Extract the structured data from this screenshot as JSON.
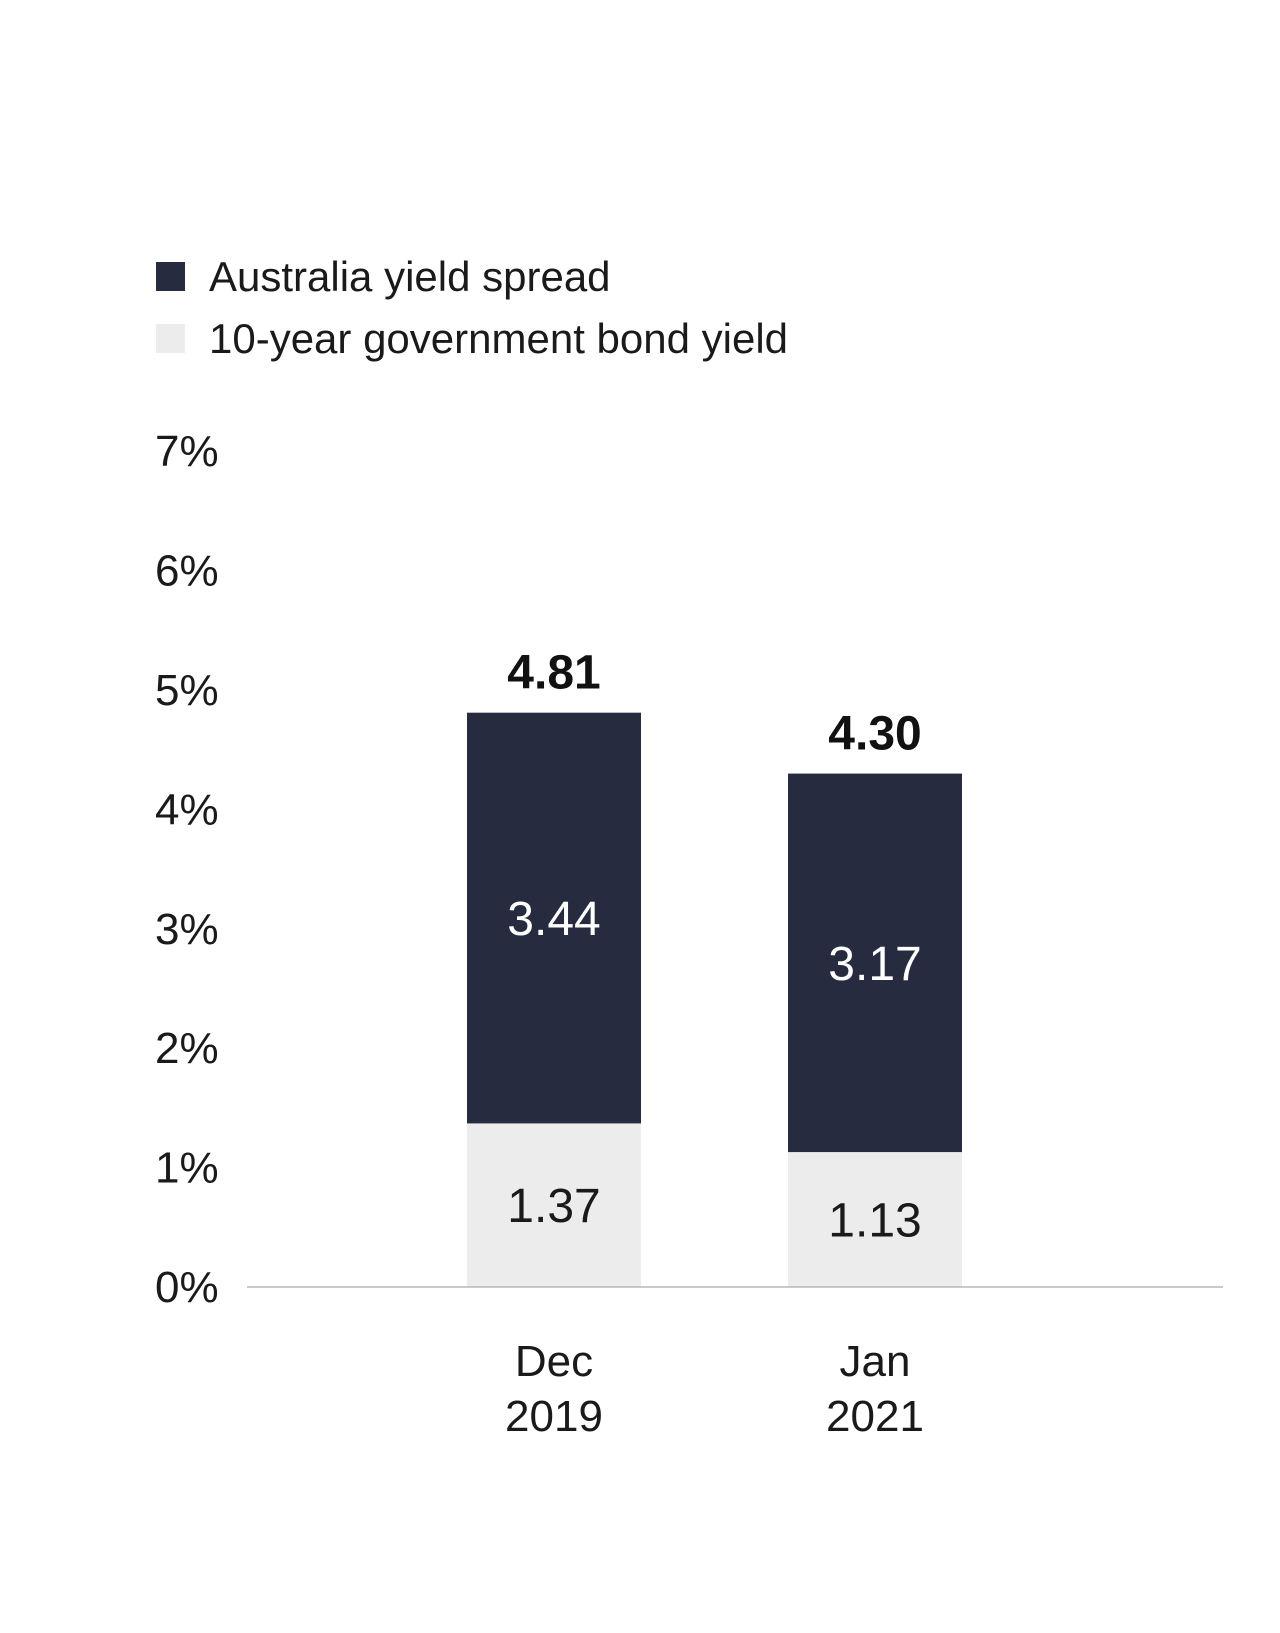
{
  "chart_data": {
    "type": "bar",
    "stacked": true,
    "categories": [
      "Dec 2019",
      "Jan 2021"
    ],
    "category_lines": [
      [
        "Dec",
        "2019"
      ],
      [
        "Jan",
        "2021"
      ]
    ],
    "series": [
      {
        "name": "10-year government bond yield",
        "values": [
          1.37,
          1.13
        ],
        "labels": [
          "1.37",
          "1.13"
        ],
        "color": "#ececec"
      },
      {
        "name": "Australia yield spread",
        "values": [
          3.44,
          3.17
        ],
        "labels": [
          "3.44",
          "3.17"
        ],
        "color": "#272b3f"
      }
    ],
    "totals": [
      4.81,
      4.3
    ],
    "total_labels": [
      "4.81",
      "4.30"
    ],
    "legend": [
      {
        "name": "Australia yield spread",
        "color": "#272b3f"
      },
      {
        "name": "10-year government bond yield",
        "color": "#ececec"
      }
    ],
    "legend_placement": "top-left",
    "ylim": [
      0,
      7
    ],
    "y_ticks": [
      "0%",
      "1%",
      "2%",
      "3%",
      "4%",
      "5%",
      "6%",
      "7%"
    ],
    "y_tick_values": [
      0,
      1,
      2,
      3,
      4,
      5,
      6,
      7
    ],
    "grid": false,
    "baseline_color": "#b8b8b8"
  }
}
